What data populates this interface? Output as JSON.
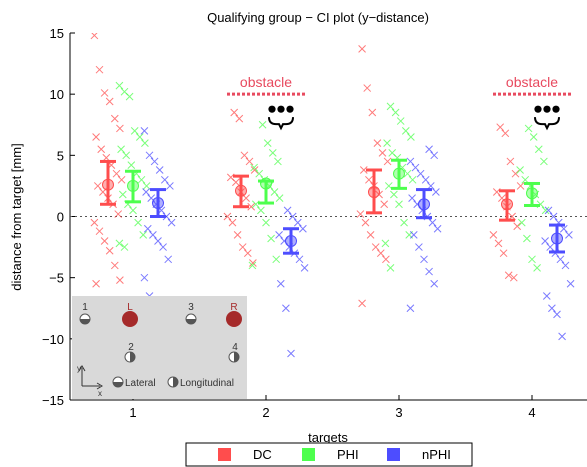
{
  "chart_data": {
    "type": "scatter",
    "title": "Qualifying group − CI plot (y−distance)",
    "xlabel": "targets",
    "ylabel": "distance from target [mm]",
    "categories": [
      "1",
      "2",
      "3",
      "4"
    ],
    "ylim": [
      -15,
      15
    ],
    "yticks": [
      "15",
      "10",
      "5",
      "0",
      "−5",
      "−10",
      "−15"
    ],
    "grid": false,
    "zero_line": "dotted",
    "legend": {
      "position": "bottom-center",
      "orientation": "horizontal"
    },
    "series": [
      {
        "name": "DC",
        "color": "#ff4d4d",
        "ci": [
          {
            "target": 1,
            "mean": 2.6,
            "low": 1.0,
            "high": 4.5
          },
          {
            "target": 2,
            "mean": 2.1,
            "low": 0.8,
            "high": 3.3
          },
          {
            "target": 3,
            "mean": 2.0,
            "low": 0.3,
            "high": 3.8
          },
          {
            "target": 4,
            "mean": 1.0,
            "low": -0.3,
            "high": 2.1
          }
        ],
        "points": [
          [
            1,
            14.8
          ],
          [
            1,
            12.0
          ],
          [
            1,
            10.1
          ],
          [
            1,
            9.4
          ],
          [
            1,
            8.0
          ],
          [
            1,
            7.2
          ],
          [
            1,
            6.5
          ],
          [
            1,
            5.5
          ],
          [
            1,
            4.8
          ],
          [
            1,
            4.2
          ],
          [
            1,
            3.5
          ],
          [
            1,
            3.0
          ],
          [
            1,
            2.5
          ],
          [
            1,
            2.0
          ],
          [
            1,
            1.5
          ],
          [
            1,
            1.0
          ],
          [
            1,
            0.2
          ],
          [
            1,
            -0.5
          ],
          [
            1,
            -1.2
          ],
          [
            1,
            -2.0
          ],
          [
            1,
            -2.8
          ],
          [
            1,
            -4.0
          ],
          [
            1,
            -5.2
          ],
          [
            1,
            -5.5
          ],
          [
            2,
            8.5
          ],
          [
            2,
            8.0
          ],
          [
            2,
            5.0
          ],
          [
            2,
            4.5
          ],
          [
            2,
            3.8
          ],
          [
            2,
            3.2
          ],
          [
            2,
            2.8
          ],
          [
            2,
            2.0
          ],
          [
            2,
            1.5
          ],
          [
            2,
            0.8
          ],
          [
            2,
            0.0
          ],
          [
            2,
            -0.5
          ],
          [
            2,
            -1.5
          ],
          [
            2,
            -2.5
          ],
          [
            2,
            -3.0
          ],
          [
            2,
            -3.8
          ],
          [
            3,
            13.7
          ],
          [
            3,
            10.5
          ],
          [
            3,
            8.5
          ],
          [
            3,
            6.0
          ],
          [
            3,
            5.2
          ],
          [
            3,
            4.5
          ],
          [
            3,
            3.8
          ],
          [
            3,
            3.0
          ],
          [
            3,
            2.5
          ],
          [
            3,
            1.8
          ],
          [
            3,
            1.0
          ],
          [
            3,
            0.2
          ],
          [
            3,
            -0.5
          ],
          [
            3,
            -1.5
          ],
          [
            3,
            -2.5
          ],
          [
            3,
            -3.0
          ],
          [
            3,
            -3.5
          ],
          [
            3,
            -7.1
          ],
          [
            4,
            7.3
          ],
          [
            4,
            6.8
          ],
          [
            4,
            4.5
          ],
          [
            4,
            3.5
          ],
          [
            4,
            2.5
          ],
          [
            4,
            2.0
          ],
          [
            4,
            1.5
          ],
          [
            4,
            0.8
          ],
          [
            4,
            0.0
          ],
          [
            4,
            -0.8
          ],
          [
            4,
            -1.5
          ],
          [
            4,
            -2.2
          ],
          [
            4,
            -3.0
          ],
          [
            4,
            -4.8
          ],
          [
            4,
            -5.0
          ]
        ]
      },
      {
        "name": "PHI",
        "color": "#4dff4d",
        "ci": [
          {
            "target": 1,
            "mean": 2.5,
            "low": 1.2,
            "high": 3.7
          },
          {
            "target": 2,
            "mean": 2.7,
            "low": 1.1,
            "high": 2.9
          },
          {
            "target": 3,
            "mean": 3.5,
            "low": 2.3,
            "high": 4.6
          },
          {
            "target": 4,
            "mean": 1.9,
            "low": 0.9,
            "high": 2.7
          }
        ],
        "points": [
          [
            1,
            10.7
          ],
          [
            1,
            10.2
          ],
          [
            1,
            9.8
          ],
          [
            1,
            7.0
          ],
          [
            1,
            6.5
          ],
          [
            1,
            6.0
          ],
          [
            1,
            5.5
          ],
          [
            1,
            5.0
          ],
          [
            1,
            4.2
          ],
          [
            1,
            3.5
          ],
          [
            1,
            3.0
          ],
          [
            1,
            2.5
          ],
          [
            1,
            1.8
          ],
          [
            1,
            1.0
          ],
          [
            1,
            0.5
          ],
          [
            1,
            -0.5
          ],
          [
            1,
            -1.5
          ],
          [
            1,
            -2.2
          ],
          [
            1,
            -2.5
          ],
          [
            2,
            7.5
          ],
          [
            2,
            6.0
          ],
          [
            2,
            5.2
          ],
          [
            2,
            4.5
          ],
          [
            2,
            4.0
          ],
          [
            2,
            3.5
          ],
          [
            2,
            3.0
          ],
          [
            2,
            2.5
          ],
          [
            2,
            2.0
          ],
          [
            2,
            1.5
          ],
          [
            2,
            1.0
          ],
          [
            2,
            0.5
          ],
          [
            2,
            -0.5
          ],
          [
            2,
            -1.8
          ],
          [
            2,
            -3.5
          ],
          [
            2,
            -4.0
          ],
          [
            3,
            9.0
          ],
          [
            3,
            8.5
          ],
          [
            3,
            7.8
          ],
          [
            3,
            7.0
          ],
          [
            3,
            6.5
          ],
          [
            3,
            6.0
          ],
          [
            3,
            5.2
          ],
          [
            3,
            4.8
          ],
          [
            3,
            4.0
          ],
          [
            3,
            3.5
          ],
          [
            3,
            3.0
          ],
          [
            3,
            2.5
          ],
          [
            3,
            1.8
          ],
          [
            3,
            1.0
          ],
          [
            3,
            -0.5
          ],
          [
            3,
            -1.5
          ],
          [
            3,
            -2.2
          ],
          [
            3,
            -4.2
          ],
          [
            4,
            7.2
          ],
          [
            4,
            6.5
          ],
          [
            4,
            5.5
          ],
          [
            4,
            4.5
          ],
          [
            4,
            3.8
          ],
          [
            4,
            3.0
          ],
          [
            4,
            2.5
          ],
          [
            4,
            1.8
          ],
          [
            4,
            1.0
          ],
          [
            4,
            0.5
          ],
          [
            4,
            -0.5
          ],
          [
            4,
            -1.8
          ],
          [
            4,
            -3.5
          ],
          [
            4,
            -4.2
          ]
        ]
      },
      {
        "name": "nPHI",
        "color": "#4d4dff",
        "ci": [
          {
            "target": 1,
            "mean": 1.1,
            "low": 0.0,
            "high": 2.2
          },
          {
            "target": 2,
            "mean": -2.0,
            "low": -3.0,
            "high": -1.0
          },
          {
            "target": 3,
            "mean": 1.0,
            "low": -0.1,
            "high": 2.2
          },
          {
            "target": 4,
            "mean": -1.8,
            "low": -2.9,
            "high": -0.7
          }
        ],
        "points": [
          [
            1,
            7.0
          ],
          [
            1,
            5.0
          ],
          [
            1,
            4.5
          ],
          [
            1,
            3.8
          ],
          [
            1,
            3.0
          ],
          [
            1,
            2.5
          ],
          [
            1,
            2.0
          ],
          [
            1,
            1.5
          ],
          [
            1,
            1.0
          ],
          [
            1,
            0.5
          ],
          [
            1,
            0.0
          ],
          [
            1,
            -0.5
          ],
          [
            1,
            -1.0
          ],
          [
            1,
            -1.5
          ],
          [
            1,
            -2.0
          ],
          [
            1,
            -2.5
          ],
          [
            1,
            -3.5
          ],
          [
            1,
            -5.0
          ],
          [
            1,
            -6.5
          ],
          [
            2,
            0.5
          ],
          [
            2,
            0.0
          ],
          [
            2,
            -0.5
          ],
          [
            2,
            -1.0
          ],
          [
            2,
            -1.5
          ],
          [
            2,
            -2.0
          ],
          [
            2,
            -2.5
          ],
          [
            2,
            -3.0
          ],
          [
            2,
            -3.5
          ],
          [
            2,
            -4.2
          ],
          [
            2,
            -5.5
          ],
          [
            2,
            -7.5
          ],
          [
            2,
            -11.2
          ],
          [
            3,
            5.5
          ],
          [
            3,
            5.0
          ],
          [
            3,
            4.5
          ],
          [
            3,
            4.0
          ],
          [
            3,
            3.5
          ],
          [
            3,
            3.0
          ],
          [
            3,
            2.5
          ],
          [
            3,
            2.0
          ],
          [
            3,
            1.5
          ],
          [
            3,
            1.0
          ],
          [
            3,
            0.5
          ],
          [
            3,
            0.0
          ],
          [
            3,
            -0.5
          ],
          [
            3,
            -1.0
          ],
          [
            3,
            -1.5
          ],
          [
            3,
            -2.5
          ],
          [
            3,
            -3.5
          ],
          [
            3,
            -4.5
          ],
          [
            3,
            -5.5
          ],
          [
            3,
            -7.5
          ],
          [
            4,
            0.5
          ],
          [
            4,
            0.0
          ],
          [
            4,
            -0.5
          ],
          [
            4,
            -1.0
          ],
          [
            4,
            -1.5
          ],
          [
            4,
            -2.0
          ],
          [
            4,
            -2.5
          ],
          [
            4,
            -3.0
          ],
          [
            4,
            -3.5
          ],
          [
            4,
            -4.0
          ],
          [
            4,
            -5.5
          ],
          [
            4,
            -6.5
          ],
          [
            4,
            -7.5
          ],
          [
            4,
            -8.0
          ],
          [
            4,
            -9.8
          ]
        ]
      }
    ],
    "annotations": [
      {
        "text": "obstacle",
        "target": 2,
        "y": 10,
        "color": "#e84a5f"
      },
      {
        "text": "obstacle",
        "target": 4,
        "y": 10,
        "color": "#e84a5f"
      }
    ]
  },
  "inset": {
    "top_labels": [
      "1",
      "L",
      "3",
      "R"
    ],
    "bottom_labels": [
      "2",
      "4"
    ],
    "axis_y": "y",
    "axis_x": "x",
    "legend_lateral": "Lateral",
    "legend_longitudinal": "Longitudinal",
    "colors": {
      "panel": "#d9d9d9",
      "target": "#a52a2a",
      "marker": "#555555"
    }
  }
}
